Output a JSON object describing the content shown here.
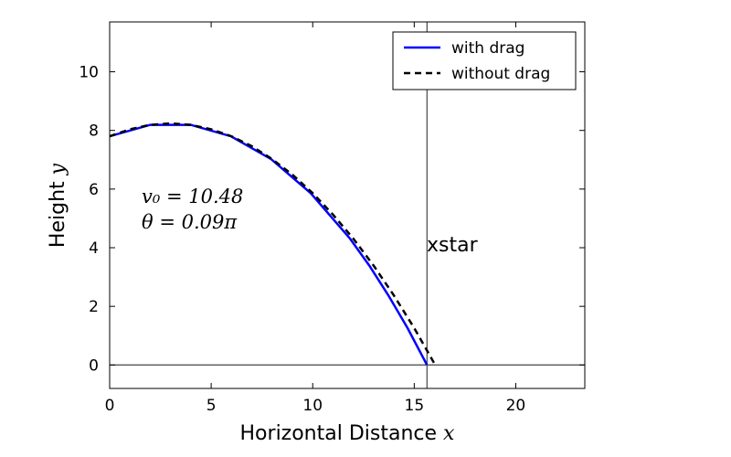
{
  "chart_data": {
    "type": "line",
    "title": "",
    "xlabel": "Horizontal Distance",
    "xlabel_var": "x",
    "ylabel": "Height",
    "ylabel_var": "y",
    "xlim": [
      0,
      23.4
    ],
    "ylim": [
      -0.8,
      11.7
    ],
    "xticks": [
      0,
      5,
      10,
      15,
      20
    ],
    "yticks": [
      0,
      2,
      4,
      6,
      8,
      10
    ],
    "grid": false,
    "legend_position": "top-right",
    "series": [
      {
        "name": "with drag",
        "color": "#0000ff",
        "style": "solid",
        "x": [
          0,
          2.0,
          3.99,
          5.97,
          7.95,
          9.9,
          11.84,
          12.79,
          13.73,
          14.67,
          15.63
        ],
        "y": [
          7.8,
          8.19,
          8.19,
          7.8,
          7.02,
          5.86,
          4.31,
          3.39,
          2.37,
          1.26,
          0.0
        ]
      },
      {
        "name": "without drag",
        "color": "#000000",
        "style": "dashed",
        "x": [
          0,
          1,
          2,
          3,
          4,
          5,
          6,
          7,
          8,
          9,
          10,
          11,
          12,
          13,
          14,
          15,
          16
        ],
        "y": [
          7.8,
          8.04,
          8.19,
          8.24,
          8.19,
          8.04,
          7.8,
          7.46,
          7.02,
          6.49,
          5.86,
          5.13,
          4.31,
          3.39,
          2.37,
          1.26,
          0.04
        ]
      }
    ],
    "reference_lines": {
      "vertical_x": 15.63,
      "horizontal_y": 0
    },
    "annotations": {
      "v0": "v₀ = 10.48",
      "theta": "θ = 0.09π",
      "xstar": "xstar"
    }
  }
}
